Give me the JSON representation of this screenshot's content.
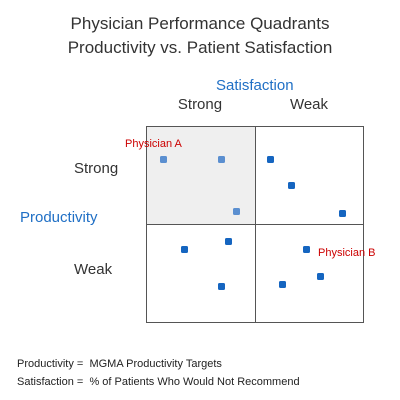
{
  "title": {
    "line1": "Physician Performance Quadrants",
    "line2": "Productivity vs. Patient Satisfaction"
  },
  "axes": {
    "x_title": "Satisfaction",
    "x_categories": [
      "Strong",
      "Weak"
    ],
    "y_title": "Productivity",
    "y_categories": [
      "Strong",
      "Weak"
    ]
  },
  "highlighted_quadrant": "Strong productivity / Strong satisfaction",
  "colors": {
    "point_highlighted": "#5b8fd0",
    "point": "#1565c0",
    "axis_title": "#1f6fc5",
    "annotation": "#cc0000",
    "highlight_fill": "#efefef",
    "grid_line": "#555555"
  },
  "annotations": {
    "physician_a": "Physician A",
    "physician_b": "Physician B"
  },
  "footnotes": {
    "productivity": "Productivity =  MGMA Productivity Targets",
    "satisfaction": "Satisfaction =  % of Patients Who Would Not Recommend"
  }
}
